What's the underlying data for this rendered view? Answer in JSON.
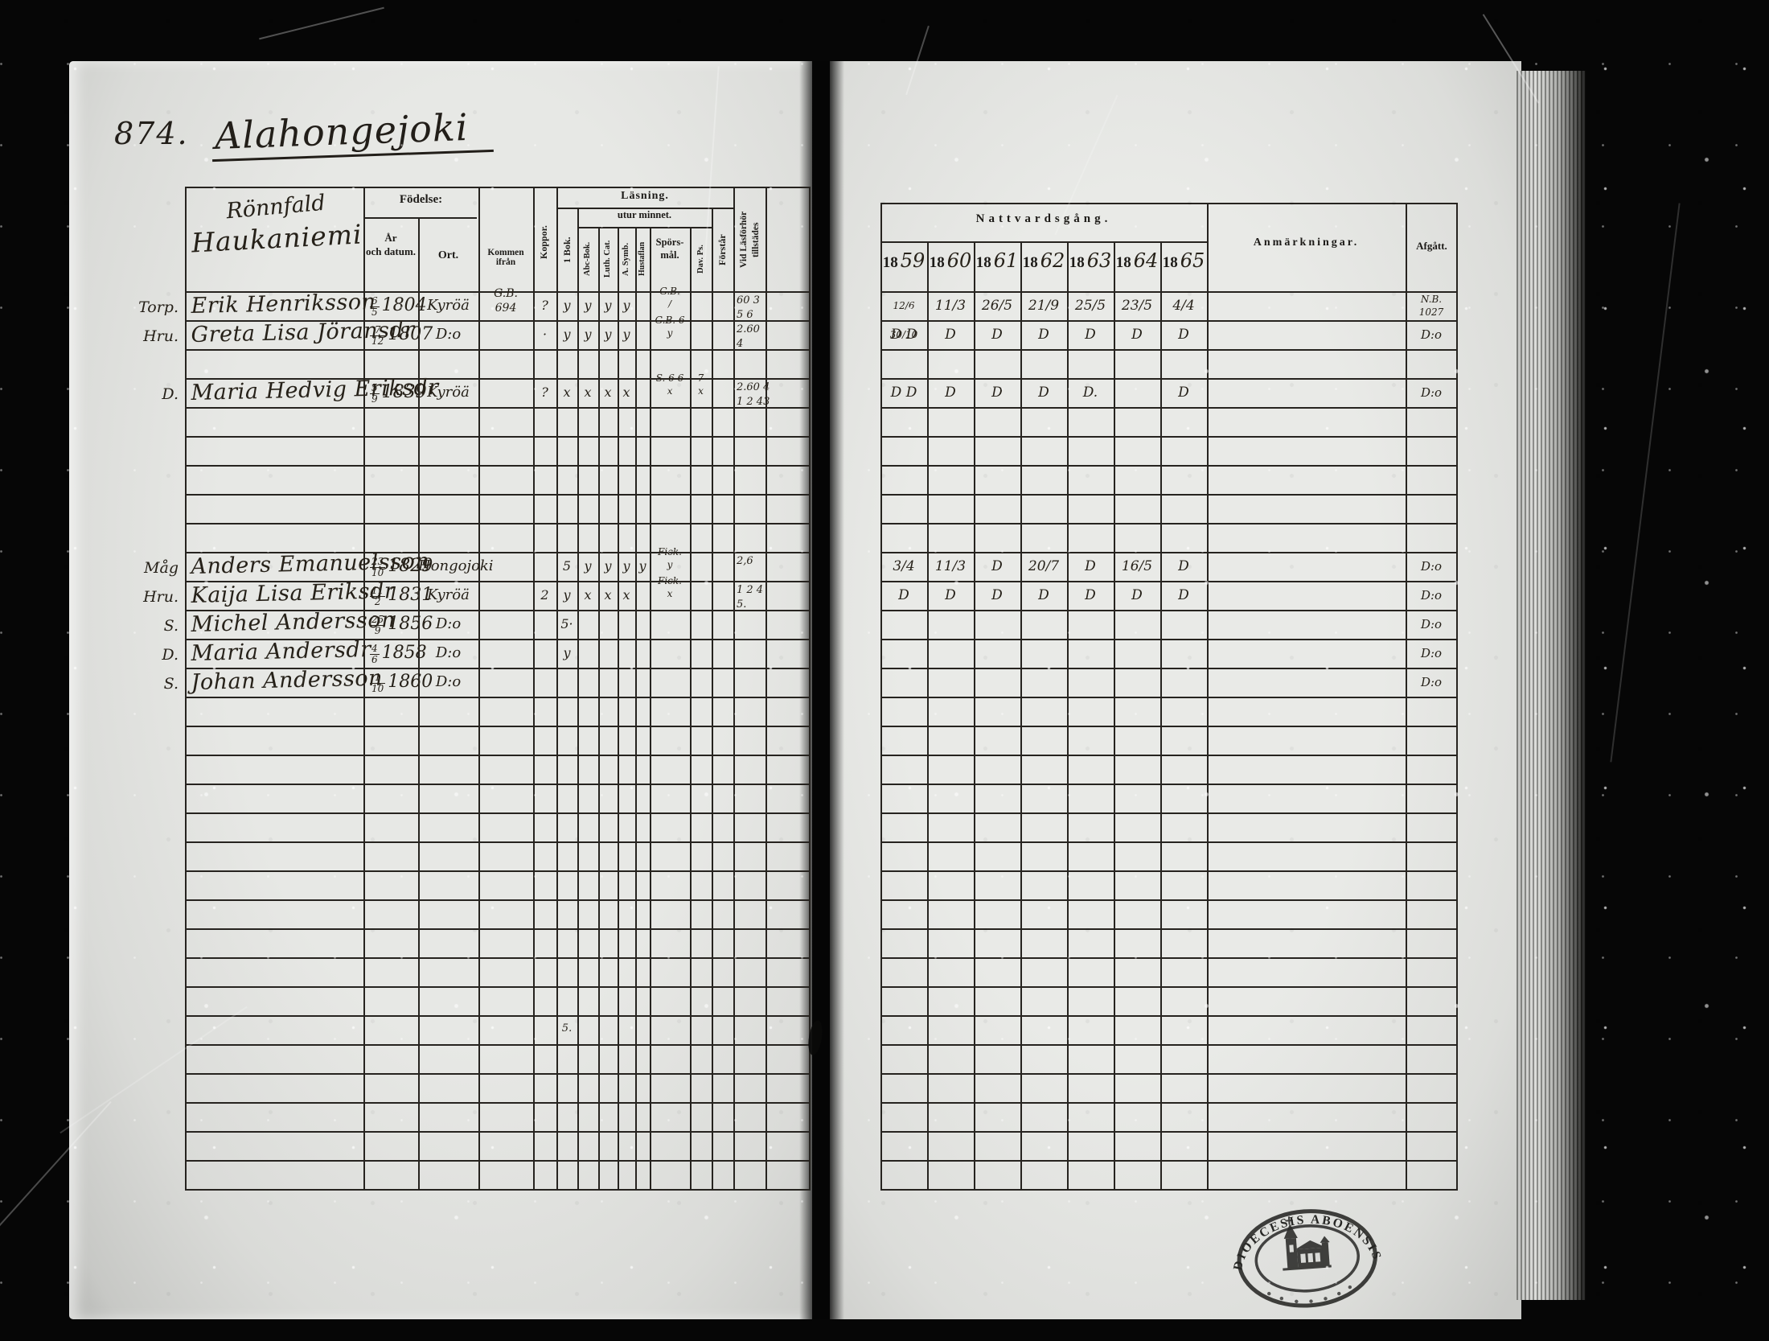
{
  "document": {
    "record_number": "874.",
    "place_title": "Alahongejoki",
    "household_line1": "Rönnfald",
    "household_line2": "Haukaniemi"
  },
  "left_table": {
    "headers": {
      "fodelse": "Födelse:",
      "ar_och_datum": "År\noch datum.",
      "ort": "Ort.",
      "kommen_ifran": "Kommen ifrån",
      "koppor": "Koppor.",
      "lasning": "Läsning.",
      "utur_minnet": "utur minnet.",
      "bok1": "1 Bok.",
      "abc_bok": "Abc-Bok.",
      "luth_cat": "Luth. Cat.",
      "a_symb": "A. Symb.",
      "hustaflan": "Hustaflan",
      "sporsmal": "Spörs-\nmål.",
      "dav_ps": "Dav. Ps.",
      "forstar": "Förstår",
      "vid_lasforhor_1": "Vid Läsförhör",
      "vid_lasforhor_2": "tillstädes"
    }
  },
  "right_table": {
    "headers": {
      "nattvardsgang": "Nattvardsgång.",
      "year_prefix": "18",
      "years": [
        "59",
        "60",
        "61",
        "62",
        "63",
        "64",
        "65"
      ],
      "anmarkningar": "Anmärkningar.",
      "afgatt": "Afgått."
    }
  },
  "rows": [
    {
      "line": 0,
      "role": "Torp.",
      "name": "Erik Henriksson",
      "birth_day": "6",
      "birth_month": "5",
      "birth_year": "1804",
      "birth_place": "Kyröä",
      "moved_from": "G.B.\n694",
      "smallpox": "?",
      "reading": {
        "bok1": "y",
        "abc": "y",
        "luth": "y",
        "symb": "y",
        "hust": "",
        "spors": "G.B.\n/",
        "dav": "",
        "forst": ""
      },
      "attended": "60 3\n5 6",
      "communion": [
        "12/6 30/10",
        "11/3",
        "26/5",
        "21/9",
        "25/5",
        "23/5",
        "4/4"
      ],
      "afgatt": "N.B.\n1027"
    },
    {
      "line": 1,
      "role": "Hru.",
      "name": "Greta Lisa Jöransdr",
      "birth_day": "7",
      "birth_month": "12",
      "birth_year": "1807",
      "birth_place": "D:o",
      "moved_from": "",
      "smallpox": "·",
      "reading": {
        "bok1": "y",
        "abc": "y",
        "luth": "y",
        "symb": "y",
        "hust": "",
        "spors": "G.B. 6\ny",
        "dav": "",
        "forst": ""
      },
      "attended": "2.60\n4",
      "communion": [
        "D D",
        "D",
        "D",
        "D",
        "D",
        "D",
        "D"
      ],
      "afgatt": "D:o"
    },
    {
      "line": 3,
      "role": "D.",
      "name": "Maria Hedvig Eriksdr",
      "birth_day": "5",
      "birth_month": "9",
      "birth_year": "1839",
      "birth_place": "Kyröä",
      "moved_from": "",
      "smallpox": "?",
      "reading": {
        "bok1": "x",
        "abc": "x",
        "luth": "x",
        "symb": "x",
        "hust": "",
        "spors": "S. 6 6\nx",
        "dav": "7\nx",
        "forst": ""
      },
      "attended": "2.60 4\n1 2 43",
      "communion": [
        "D D",
        "D",
        "D",
        "D",
        "D.",
        "",
        "D"
      ],
      "afgatt": "D:o"
    },
    {
      "line": 9,
      "role": "Måg",
      "name": "Anders Emanuelsson",
      "birth_day": "23",
      "birth_month": "10",
      "birth_year": "1829",
      "birth_place": "Hongojoki",
      "moved_from": "",
      "smallpox": "",
      "reading": {
        "bok1": "5",
        "abc": "y",
        "luth": "y",
        "symb": "y",
        "hust": "y",
        "spors": "Fick.\ny",
        "dav": "",
        "forst": ""
      },
      "attended": "2,6",
      "communion": [
        "3/4",
        "11/3",
        "D",
        "20/7",
        "D",
        "16/5",
        "D"
      ],
      "afgatt": "D:o"
    },
    {
      "line": 10,
      "role": "Hru.",
      "name": "Kaija Lisa Eriksdr",
      "birth_day": "11",
      "birth_month": "2",
      "birth_year": "1831",
      "birth_place": "Kyröä",
      "moved_from": "",
      "smallpox": "2",
      "reading": {
        "bok1": "y",
        "abc": "x",
        "luth": "x",
        "symb": "x",
        "hust": "",
        "spors": "Fick.\nx",
        "dav": "",
        "forst": ""
      },
      "attended": "1 2 4\n5.",
      "communion": [
        "D",
        "D",
        "D",
        "D",
        "D",
        "D",
        "D"
      ],
      "afgatt": "D:o"
    },
    {
      "line": 11,
      "role": "S.",
      "name": "Michel Andersson",
      "birth_day": "25",
      "birth_month": "9",
      "birth_year": "1856",
      "birth_place": "D:o",
      "moved_from": "",
      "smallpox": "",
      "reading": {
        "bok1": "5·",
        "abc": "",
        "luth": "",
        "symb": "",
        "hust": "",
        "spors": "",
        "dav": "",
        "forst": ""
      },
      "attended": "",
      "communion": [
        "",
        "",
        "",
        "",
        "",
        "",
        ""
      ],
      "afgatt": "D:o"
    },
    {
      "line": 12,
      "role": "D.",
      "name": "Maria Andersdr",
      "birth_day": "4",
      "birth_month": "6",
      "birth_year": "1858",
      "birth_place": "D:o",
      "moved_from": "",
      "smallpox": "",
      "reading": {
        "bok1": "y",
        "abc": "",
        "luth": "",
        "symb": "",
        "hust": "",
        "spors": "",
        "dav": "",
        "forst": ""
      },
      "attended": "",
      "communion": [
        "",
        "",
        "",
        "",
        "",
        "",
        ""
      ],
      "afgatt": "D:o"
    },
    {
      "line": 13,
      "role": "S.",
      "name": "Johan Andersson",
      "birth_day": "1",
      "birth_month": "10",
      "birth_year": "1860",
      "birth_place": "D:o",
      "moved_from": "",
      "smallpox": "",
      "reading": {
        "bok1": "",
        "abc": "",
        "luth": "",
        "symb": "",
        "hust": "",
        "spors": "",
        "dav": "",
        "forst": ""
      },
      "attended": "",
      "communion": [
        "",
        "",
        "",
        "",
        "",
        "",
        ""
      ],
      "afgatt": "D:o"
    }
  ],
  "stray_marks": [
    {
      "line": 25,
      "text": "5."
    }
  ],
  "stamp": {
    "top_text": "DIOECESIS ABOENSIS"
  }
}
